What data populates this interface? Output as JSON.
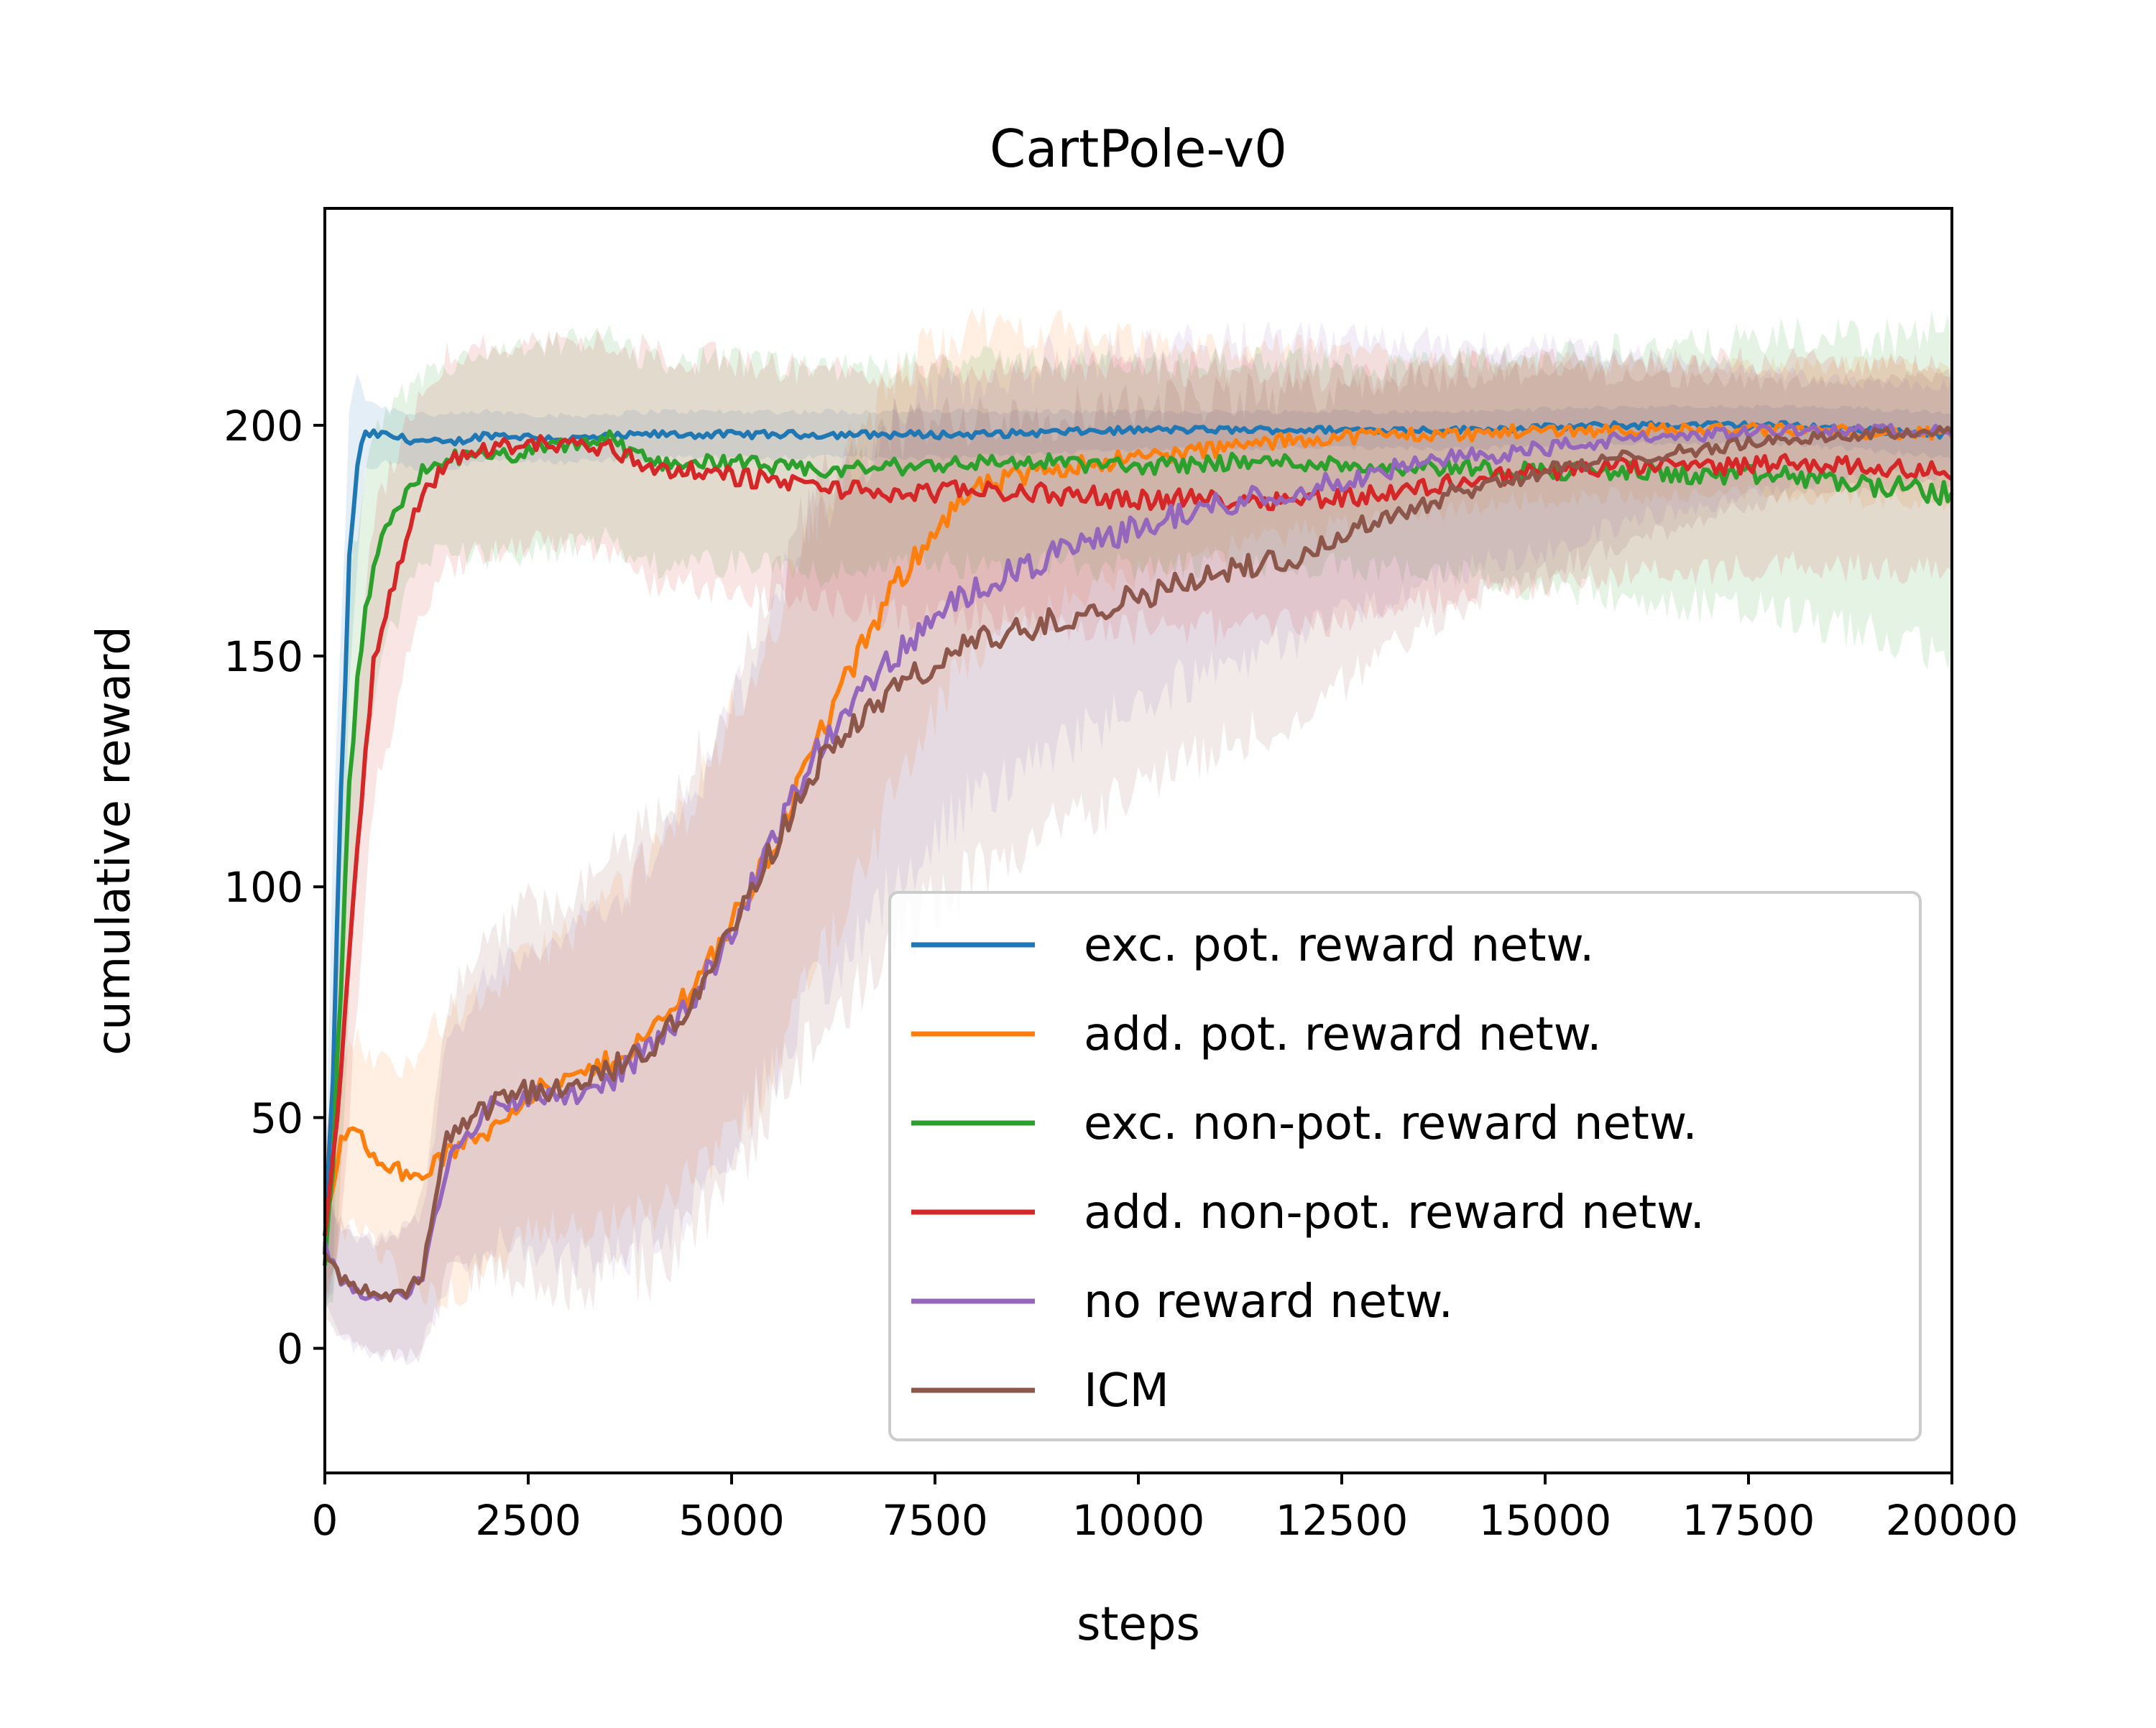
{
  "chart_data": {
    "type": "line",
    "title": "CartPole-v0",
    "xlabel": "steps",
    "ylabel": "cumulative reward",
    "xlim": [
      0,
      20000
    ],
    "ylim": [
      -27,
      247
    ],
    "xticks": [
      0,
      2500,
      5000,
      7500,
      10000,
      12500,
      15000,
      17500,
      20000
    ],
    "xtick_labels": [
      "0",
      "2500",
      "5000",
      "7500",
      "10000",
      "12500",
      "15000",
      "17500",
      "20000"
    ],
    "yticks": [
      0,
      50,
      100,
      150,
      200
    ],
    "ytick_labels": [
      "0",
      "50",
      "100",
      "150",
      "200"
    ],
    "legend_position": "lower-right",
    "series": [
      {
        "name": "exc. pot. reward netw.",
        "color": "#1f77b4",
        "x": [
          0,
          100,
          200,
          300,
          400,
          500,
          700,
          1000,
          1500,
          2000,
          3000,
          4000,
          6000,
          8000,
          10000,
          12000,
          14000,
          16000,
          18000,
          20000
        ],
        "y": [
          20,
          60,
          120,
          170,
          192,
          198,
          198,
          197,
          196,
          198,
          197,
          198,
          198,
          198,
          199,
          199,
          199,
          200,
          200,
          198
        ],
        "band": [
          10,
          45,
          40,
          30,
          20,
          8,
          6,
          6,
          6,
          5,
          5,
          5,
          5,
          5,
          4,
          4,
          4,
          4,
          4,
          5
        ]
      },
      {
        "name": "add. pot. reward netw.",
        "color": "#ff7f0e",
        "x": [
          0,
          200,
          400,
          600,
          800,
          1000,
          1200,
          1500,
          2000,
          2500,
          3000,
          3500,
          4000,
          4500,
          5000,
          5500,
          6000,
          6500,
          7000,
          7500,
          8000,
          9000,
          10000,
          11000,
          12000,
          13000,
          14000,
          15000,
          16000,
          18000,
          20000
        ],
        "y": [
          25,
          45,
          47,
          42,
          40,
          37,
          38,
          42,
          47,
          55,
          58,
          62,
          68,
          78,
          92,
          108,
          130,
          148,
          165,
          178,
          186,
          191,
          193,
          195,
          197,
          198,
          198,
          199,
          199,
          199,
          198
        ],
        "band": [
          15,
          20,
          20,
          20,
          22,
          25,
          28,
          30,
          30,
          30,
          32,
          35,
          38,
          40,
          45,
          48,
          50,
          48,
          45,
          40,
          35,
          30,
          25,
          22,
          20,
          18,
          16,
          15,
          14,
          14,
          15
        ]
      },
      {
        "name": "exc. non-pot. reward netw.",
        "color": "#2ca02c",
        "x": [
          0,
          100,
          200,
          300,
          400,
          500,
          700,
          1000,
          1200,
          1500,
          2000,
          2500,
          3000,
          3500,
          4000,
          5000,
          6000,
          7000,
          8000,
          9000,
          10000,
          11000,
          12000,
          13000,
          14000,
          15000,
          16000,
          17000,
          18000,
          19000,
          20000
        ],
        "y": [
          18,
          40,
          80,
          120,
          145,
          160,
          175,
          185,
          190,
          193,
          193,
          194,
          196,
          197,
          192,
          192,
          190,
          191,
          192,
          192,
          191,
          192,
          192,
          191,
          191,
          190,
          190,
          189,
          189,
          187,
          185
        ],
        "band": [
          10,
          30,
          40,
          40,
          35,
          30,
          25,
          22,
          20,
          20,
          22,
          22,
          22,
          22,
          22,
          22,
          22,
          22,
          22,
          22,
          22,
          22,
          22,
          22,
          23,
          25,
          27,
          28,
          30,
          32,
          35
        ]
      },
      {
        "name": "add. non-pot. reward netw.",
        "color": "#d62728",
        "x": [
          0,
          100,
          200,
          300,
          400,
          500,
          600,
          800,
          1000,
          1200,
          1500,
          2000,
          2500,
          3000,
          3500,
          4000,
          5000,
          6000,
          7000,
          8000,
          9000,
          10000,
          11000,
          12000,
          13000,
          14000,
          15000,
          16000,
          17000,
          18000,
          19000,
          20000
        ],
        "y": [
          25,
          40,
          60,
          85,
          110,
          130,
          148,
          162,
          175,
          185,
          192,
          195,
          196,
          196,
          195,
          191,
          189,
          187,
          185,
          186,
          185,
          184,
          184,
          184,
          185,
          188,
          190,
          191,
          191,
          192,
          191,
          190
        ],
        "band": [
          15,
          25,
          30,
          35,
          35,
          33,
          30,
          28,
          25,
          24,
          23,
          22,
          22,
          22,
          23,
          25,
          25,
          25,
          26,
          27,
          28,
          28,
          28,
          27,
          26,
          25,
          24,
          23,
          23,
          22,
          22,
          22
        ]
      },
      {
        "name": "no reward netw.",
        "color": "#9467bd",
        "x": [
          0,
          200,
          400,
          600,
          800,
          1000,
          1200,
          1500,
          2000,
          2500,
          3000,
          3500,
          4000,
          4500,
          5000,
          5500,
          6000,
          6500,
          7000,
          7500,
          8000,
          9000,
          10000,
          11000,
          12000,
          13000,
          14000,
          15000,
          16000,
          17000,
          18000,
          19000,
          20000
        ],
        "y": [
          22,
          15,
          12,
          11,
          11,
          12,
          15,
          40,
          52,
          55,
          55,
          58,
          65,
          75,
          90,
          110,
          128,
          140,
          150,
          158,
          165,
          172,
          178,
          183,
          186,
          190,
          193,
          195,
          197,
          198,
          199,
          199,
          199
        ],
        "band": [
          12,
          12,
          12,
          12,
          13,
          14,
          15,
          25,
          30,
          32,
          35,
          38,
          42,
          45,
          48,
          50,
          52,
          52,
          50,
          48,
          45,
          42,
          38,
          35,
          32,
          28,
          25,
          22,
          18,
          15,
          12,
          10,
          10
        ]
      },
      {
        "name": "ICM",
        "color": "#8c564b",
        "x": [
          0,
          200,
          400,
          600,
          800,
          1000,
          1200,
          1500,
          2000,
          2500,
          3000,
          3500,
          4000,
          4500,
          5000,
          5500,
          6000,
          6500,
          7000,
          7500,
          8000,
          9000,
          10000,
          11000,
          12000,
          13000,
          14000,
          15000,
          16000,
          17000,
          18000,
          19000,
          20000
        ],
        "y": [
          20,
          15,
          13,
          12,
          11,
          12,
          16,
          45,
          52,
          56,
          56,
          60,
          65,
          75,
          90,
          108,
          125,
          135,
          143,
          148,
          153,
          158,
          163,
          168,
          172,
          180,
          186,
          190,
          193,
          195,
          197,
          198,
          199
        ],
        "band": [
          12,
          12,
          12,
          12,
          13,
          14,
          18,
          30,
          35,
          40,
          42,
          45,
          48,
          50,
          52,
          55,
          58,
          58,
          55,
          52,
          50,
          45,
          42,
          38,
          35,
          30,
          25,
          22,
          18,
          15,
          12,
          12,
          12
        ]
      }
    ]
  }
}
